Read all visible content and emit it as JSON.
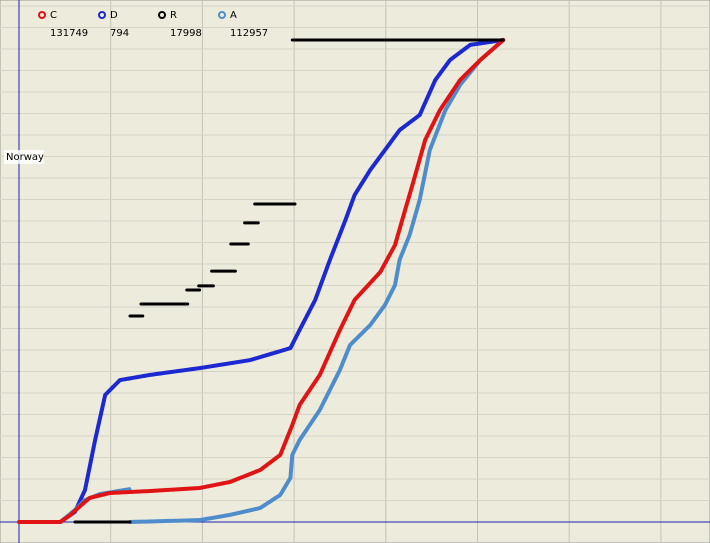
{
  "chart_data": {
    "type": "line",
    "label": "Norway",
    "legend": "top-left",
    "grid": true,
    "tick_labels": false,
    "xlim": [
      0,
      7.5
    ],
    "xticks": [
      0,
      1,
      2,
      3,
      4,
      5,
      6,
      7
    ],
    "ylim": [
      0,
      24
    ],
    "yticks": [
      0,
      1,
      2,
      3,
      4,
      5,
      6,
      7,
      8,
      9,
      10,
      11,
      12,
      13,
      14,
      15,
      16,
      17,
      18,
      19,
      20,
      21,
      22,
      23,
      24
    ],
    "series": [
      {
        "name": "C",
        "count": 131749,
        "color": "#e01414",
        "x": [
          0,
          0.45,
          0.56,
          0.68,
          0.77,
          0.99,
          1.43,
          1.97,
          2.3,
          2.63,
          2.85,
          2.98,
          3.06,
          3.28,
          3.5,
          3.66,
          3.94,
          4.1,
          4.21,
          4.29,
          4.43,
          4.59,
          4.81,
          5.03,
          5.28
        ],
        "values": [
          0,
          0,
          0.33,
          0.79,
          1.12,
          1.35,
          1.44,
          1.58,
          1.86,
          2.42,
          3.12,
          4.51,
          5.44,
          6.84,
          8.93,
          10.33,
          11.63,
          12.88,
          14.51,
          15.67,
          17.77,
          19.16,
          20.56,
          21.49,
          22.42
        ]
      },
      {
        "name": "D",
        "count": 794,
        "color": "#1c28d0",
        "x": [
          0.45,
          0.61,
          0.72,
          0.83,
          0.94,
          1.1,
          1.43,
          1.97,
          2.52,
          2.96,
          3.06,
          3.23,
          3.39,
          3.56,
          3.66,
          3.83,
          3.99,
          4.15,
          4.37,
          4.54,
          4.7,
          4.92,
          5.28
        ],
        "values": [
          0,
          0.47,
          1.49,
          3.81,
          5.91,
          6.6,
          6.84,
          7.16,
          7.53,
          8.09,
          8.93,
          10.33,
          12.19,
          14.05,
          15.21,
          16.37,
          17.3,
          18.23,
          18.93,
          20.56,
          21.49,
          22.19,
          22.42
        ]
      },
      {
        "name": "R",
        "count": 17998,
        "color": "#000000",
        "x": [
          0.61,
          1.21,
          null,
          1.21,
          1.35,
          null,
          1.33,
          1.84,
          null,
          1.83,
          1.97,
          null,
          1.96,
          2.12,
          null,
          2.1,
          2.36,
          null,
          2.31,
          2.5,
          null,
          2.46,
          2.61,
          null,
          2.57,
          3.01,
          null,
          2.98,
          5.28
        ],
        "values": [
          0,
          0,
          null,
          9.58,
          9.58,
          null,
          10.14,
          10.14,
          null,
          10.79,
          10.79,
          null,
          10.98,
          10.98,
          null,
          11.67,
          11.67,
          null,
          12.93,
          12.93,
          null,
          13.91,
          13.91,
          null,
          14.79,
          14.79,
          null,
          22.42,
          22.42
        ]
      },
      {
        "name": "A",
        "count": 112957,
        "color": "#4f8ccc",
        "x": [
          0.45,
          0.61,
          0.72,
          0.88,
          1.21,
          null,
          1.21,
          1.97,
          2.3,
          2.63,
          2.85,
          2.96,
          2.98,
          3.06,
          3.28,
          3.5,
          3.61,
          3.83,
          3.99,
          4.1,
          4.15,
          4.26,
          4.37,
          4.48,
          4.65,
          4.81,
          5.03,
          5.28
        ],
        "values": [
          0,
          0.56,
          1.02,
          1.3,
          1.53,
          null,
          0,
          0.09,
          0.33,
          0.65,
          1.26,
          2.05,
          3.12,
          3.81,
          5.21,
          7.07,
          8.23,
          9.16,
          10.09,
          11.02,
          12.19,
          13.35,
          14.98,
          17.3,
          19.16,
          20.33,
          21.49,
          22.42
        ]
      }
    ]
  }
}
